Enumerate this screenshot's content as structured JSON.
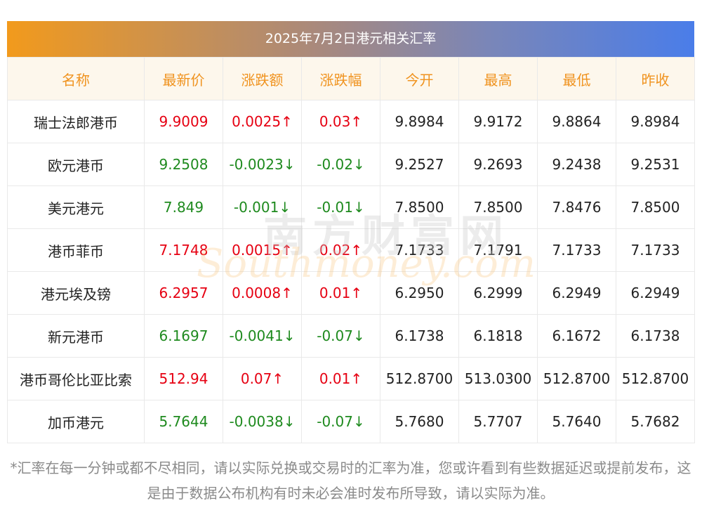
{
  "title": "2025年7月2日港元相关汇率",
  "headers": [
    "名称",
    "最新价",
    "涨跌额",
    "涨跌幅",
    "今开",
    "最高",
    "最低",
    "昨收"
  ],
  "rows": [
    {
      "name": "瑞士法郎港币",
      "latest": "9.9009",
      "change": "0.0025↑",
      "pct": "0.03↑",
      "open": "9.8984",
      "high": "9.9172",
      "low": "9.8864",
      "prev": "9.8984",
      "trend": "up"
    },
    {
      "name": "欧元港币",
      "latest": "9.2508",
      "change": "-0.0023↓",
      "pct": "-0.02↓",
      "open": "9.2527",
      "high": "9.2693",
      "low": "9.2438",
      "prev": "9.2531",
      "trend": "down"
    },
    {
      "name": "美元港元",
      "latest": "7.849",
      "change": "-0.001↓",
      "pct": "-0.01↓",
      "open": "7.8500",
      "high": "7.8500",
      "low": "7.8476",
      "prev": "7.8500",
      "trend": "down"
    },
    {
      "name": "港币菲币",
      "latest": "7.1748",
      "change": "0.0015↑",
      "pct": "0.02↑",
      "open": "7.1733",
      "high": "7.1791",
      "low": "7.1733",
      "prev": "7.1733",
      "trend": "up"
    },
    {
      "name": "港元埃及镑",
      "latest": "6.2957",
      "change": "0.0008↑",
      "pct": "0.01↑",
      "open": "6.2950",
      "high": "6.2999",
      "low": "6.2949",
      "prev": "6.2949",
      "trend": "up"
    },
    {
      "name": "新元港币",
      "latest": "6.1697",
      "change": "-0.0041↓",
      "pct": "-0.07↓",
      "open": "6.1738",
      "high": "6.1818",
      "low": "6.1672",
      "prev": "6.1738",
      "trend": "down"
    },
    {
      "name": "港币哥伦比亚比索",
      "latest": "512.94",
      "change": "0.07↑",
      "pct": "0.01↑",
      "open": "512.8700",
      "high": "513.0300",
      "low": "512.8700",
      "prev": "512.8700",
      "trend": "up"
    },
    {
      "name": "加币港元",
      "latest": "5.7644",
      "change": "-0.0038↓",
      "pct": "-0.07↓",
      "open": "5.7680",
      "high": "5.7707",
      "low": "5.7640",
      "prev": "5.7682",
      "trend": "down"
    }
  ],
  "watermark": {
    "cn": "南方财富网",
    "en": "Southmoney.com"
  },
  "note": "*汇率在每一分钟或都不尽相同，请以实际兑换或交易时的汇率为准，您或许看到有些数据延迟或提前发布，这是由于数据公布机构有时未必会准时发布所导致，请以实际为准。",
  "colors": {
    "up": "#e60012",
    "down": "#1e8a1e",
    "header_text": "#f0931f",
    "title_gradient_start": "#f29a1c",
    "title_gradient_end": "#4a7de9"
  }
}
